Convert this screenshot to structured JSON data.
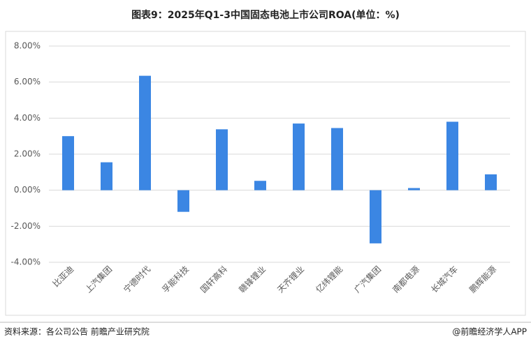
{
  "chart_data": {
    "type": "bar",
    "title": "图表9：2025年Q1-3中国固态电池上市公司ROA(单位：%)",
    "categories": [
      "比亚迪",
      "上汽集团",
      "宁德时代",
      "孚能科技",
      "国轩高科",
      "赣锋锂业",
      "天齐锂业",
      "亿纬锂能",
      "广汽集团",
      "南都电源",
      "长城汽车",
      "鹏辉能源"
    ],
    "values": [
      3.0,
      1.55,
      6.35,
      -1.2,
      3.38,
      0.52,
      3.7,
      3.45,
      -2.95,
      0.12,
      3.8,
      0.88
    ],
    "color": "#3b86e3",
    "ylim": [
      -4,
      8
    ],
    "yticks": [
      {
        "value": -4,
        "label": "-4.00%"
      },
      {
        "value": -2,
        "label": "-2.00%"
      },
      {
        "value": 0,
        "label": "0.00%"
      },
      {
        "value": 2,
        "label": "2.00%"
      },
      {
        "value": 4,
        "label": "4.00%"
      },
      {
        "value": 6,
        "label": "6.00%"
      },
      {
        "value": 8,
        "label": "8.00%"
      }
    ],
    "grid": true
  },
  "footer": {
    "source": "资料来源：各公司公告 前瞻产业研究院",
    "brand": "@前瞻经济学人APP"
  }
}
